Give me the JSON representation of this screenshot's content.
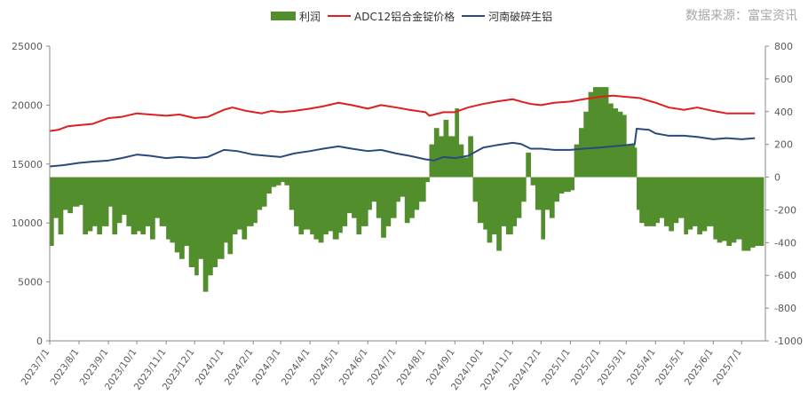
{
  "source_text": "数据来源：富宝资讯",
  "legend": [
    {
      "name": "利润",
      "kind": "area",
      "color": "#538e2d"
    },
    {
      "name": "ADC12铝合金锭价格",
      "kind": "line",
      "color": "#e01e1e"
    },
    {
      "name": "河南破碎生铝",
      "kind": "line",
      "color": "#2a4a7b"
    }
  ],
  "chart_data": {
    "type": "line",
    "x_tick_labels": [
      "2023/7/1",
      "2023/8/1",
      "2023/9/1",
      "2023/10/1",
      "2023/11/1",
      "2023/12/1",
      "2024/1/1",
      "2024/2/1",
      "2024/3/1",
      "2024/4/1",
      "2024/5/1",
      "2024/6/1",
      "2024/7/1",
      "2024/8/1",
      "2024/9/1",
      "2024/10/1",
      "2024/11/1",
      "2024/12/1",
      "2025/1/1",
      "2025/2/1",
      "2025/3/1",
      "2025/4/1",
      "2025/5/1",
      "2025/6/1",
      "2025/7/1"
    ],
    "y_left": {
      "min": 0,
      "max": 25000,
      "ticks": [
        0,
        5000,
        10000,
        15000,
        20000,
        25000
      ]
    },
    "y_right": {
      "min": -1000,
      "max": 800,
      "ticks": [
        -1000,
        -800,
        -600,
        -400,
        -200,
        0,
        200,
        400,
        600,
        800
      ]
    },
    "grid": false,
    "legend_position": "top",
    "x_start": "2023/7/1",
    "series": [
      {
        "name": "ADC12铝合金锭价格",
        "axis": "left",
        "color": "#e01e1e",
        "points": [
          [
            "2023/7/1",
            17800
          ],
          [
            "2023/7/10",
            17900
          ],
          [
            "2023/7/20",
            18200
          ],
          [
            "2023/8/1",
            18300
          ],
          [
            "2023/8/15",
            18400
          ],
          [
            "2023/9/1",
            18900
          ],
          [
            "2023/9/15",
            19000
          ],
          [
            "2023/10/1",
            19300
          ],
          [
            "2023/10/15",
            19200
          ],
          [
            "2023/11/1",
            19100
          ],
          [
            "2023/11/15",
            19200
          ],
          [
            "2023/12/1",
            18900
          ],
          [
            "2023/12/15",
            19000
          ],
          [
            "2024/1/1",
            19600
          ],
          [
            "2024/1/10",
            19800
          ],
          [
            "2024/1/25",
            19500
          ],
          [
            "2024/2/10",
            19300
          ],
          [
            "2024/2/20",
            19500
          ],
          [
            "2024/3/1",
            19400
          ],
          [
            "2024/3/15",
            19500
          ],
          [
            "2024/4/1",
            19700
          ],
          [
            "2024/4/15",
            19900
          ],
          [
            "2024/5/1",
            20200
          ],
          [
            "2024/5/15",
            20000
          ],
          [
            "2024/6/1",
            19700
          ],
          [
            "2024/6/15",
            20000
          ],
          [
            "2024/7/1",
            19800
          ],
          [
            "2024/7/15",
            19600
          ],
          [
            "2024/8/1",
            19400
          ],
          [
            "2024/8/5",
            19100
          ],
          [
            "2024/8/20",
            19400
          ],
          [
            "2024/9/1",
            19400
          ],
          [
            "2024/9/15",
            19800
          ],
          [
            "2024/10/1",
            20100
          ],
          [
            "2024/10/15",
            20300
          ],
          [
            "2024/11/1",
            20500
          ],
          [
            "2024/11/10",
            20300
          ],
          [
            "2024/11/20",
            20100
          ],
          [
            "2024/12/1",
            20000
          ],
          [
            "2024/12/15",
            20200
          ],
          [
            "2025/1/1",
            20300
          ],
          [
            "2025/1/15",
            20500
          ],
          [
            "2025/2/1",
            20700
          ],
          [
            "2025/2/15",
            20800
          ],
          [
            "2025/3/1",
            20700
          ],
          [
            "2025/3/15",
            20600
          ],
          [
            "2025/4/1",
            20200
          ],
          [
            "2025/4/15",
            19800
          ],
          [
            "2025/5/1",
            19600
          ],
          [
            "2025/5/15",
            19800
          ],
          [
            "2025/6/1",
            19500
          ],
          [
            "2025/6/15",
            19300
          ],
          [
            "2025/7/1",
            19300
          ],
          [
            "2025/7/15",
            19300
          ]
        ]
      },
      {
        "name": "河南破碎生铝",
        "axis": "left",
        "color": "#2a4a7b",
        "points": [
          [
            "2023/7/1",
            14800
          ],
          [
            "2023/7/15",
            14900
          ],
          [
            "2023/8/1",
            15100
          ],
          [
            "2023/8/15",
            15200
          ],
          [
            "2023/9/1",
            15300
          ],
          [
            "2023/9/15",
            15500
          ],
          [
            "2023/10/1",
            15800
          ],
          [
            "2023/10/15",
            15700
          ],
          [
            "2023/11/1",
            15500
          ],
          [
            "2023/11/15",
            15600
          ],
          [
            "2023/12/1",
            15500
          ],
          [
            "2023/12/15",
            15600
          ],
          [
            "2024/1/1",
            16200
          ],
          [
            "2024/1/15",
            16100
          ],
          [
            "2024/2/1",
            15800
          ],
          [
            "2024/2/15",
            15700
          ],
          [
            "2024/3/1",
            15600
          ],
          [
            "2024/3/15",
            15900
          ],
          [
            "2024/4/1",
            16100
          ],
          [
            "2024/4/15",
            16300
          ],
          [
            "2024/5/1",
            16500
          ],
          [
            "2024/5/15",
            16300
          ],
          [
            "2024/6/1",
            16100
          ],
          [
            "2024/6/15",
            16200
          ],
          [
            "2024/7/1",
            15900
          ],
          [
            "2024/7/15",
            15700
          ],
          [
            "2024/8/1",
            15400
          ],
          [
            "2024/8/10",
            15300
          ],
          [
            "2024/8/20",
            15600
          ],
          [
            "2024/9/1",
            15500
          ],
          [
            "2024/9/15",
            15700
          ],
          [
            "2024/10/1",
            16400
          ],
          [
            "2024/10/15",
            16600
          ],
          [
            "2024/11/1",
            16800
          ],
          [
            "2024/11/10",
            16700
          ],
          [
            "2024/11/20",
            16300
          ],
          [
            "2024/12/1",
            16300
          ],
          [
            "2024/12/15",
            16200
          ],
          [
            "2025/1/1",
            16200
          ],
          [
            "2025/1/15",
            16300
          ],
          [
            "2025/2/1",
            16400
          ],
          [
            "2025/2/15",
            16500
          ],
          [
            "2025/3/1",
            16600
          ],
          [
            "2025/3/10",
            16700
          ],
          [
            "2025/3/12",
            18000
          ],
          [
            "2025/3/25",
            17900
          ],
          [
            "2025/4/1",
            17600
          ],
          [
            "2025/4/15",
            17400
          ],
          [
            "2025/5/1",
            17400
          ],
          [
            "2025/5/15",
            17300
          ],
          [
            "2025/6/1",
            17100
          ],
          [
            "2025/6/15",
            17200
          ],
          [
            "2025/7/1",
            17100
          ],
          [
            "2025/7/15",
            17200
          ]
        ]
      },
      {
        "name": "利润",
        "axis": "right",
        "color": "#538e2d",
        "points": [
          [
            "2023/7/1",
            -420
          ],
          [
            "2023/7/5",
            -250
          ],
          [
            "2023/7/10",
            -350
          ],
          [
            "2023/7/15",
            -200
          ],
          [
            "2023/7/20",
            -220
          ],
          [
            "2023/7/25",
            -180
          ],
          [
            "2023/8/1",
            -170
          ],
          [
            "2023/8/5",
            -350
          ],
          [
            "2023/8/10",
            -330
          ],
          [
            "2023/8/15",
            -300
          ],
          [
            "2023/8/20",
            -350
          ],
          [
            "2023/8/25",
            -300
          ],
          [
            "2023/9/1",
            -180
          ],
          [
            "2023/9/5",
            -350
          ],
          [
            "2023/9/10",
            -280
          ],
          [
            "2023/9/15",
            -230
          ],
          [
            "2023/9/20",
            -300
          ],
          [
            "2023/9/25",
            -350
          ],
          [
            "2023/10/1",
            -330
          ],
          [
            "2023/10/5",
            -350
          ],
          [
            "2023/10/10",
            -300
          ],
          [
            "2023/10/15",
            -380
          ],
          [
            "2023/10/20",
            -250
          ],
          [
            "2023/10/25",
            -300
          ],
          [
            "2023/11/1",
            -380
          ],
          [
            "2023/11/5",
            -400
          ],
          [
            "2023/11/10",
            -460
          ],
          [
            "2023/11/15",
            -500
          ],
          [
            "2023/11/20",
            -420
          ],
          [
            "2023/11/25",
            -550
          ],
          [
            "2023/12/1",
            -600
          ],
          [
            "2023/12/5",
            -500
          ],
          [
            "2023/12/10",
            -700
          ],
          [
            "2023/12/15",
            -600
          ],
          [
            "2023/12/20",
            -550
          ],
          [
            "2023/12/25",
            -500
          ],
          [
            "2024/1/1",
            -400
          ],
          [
            "2024/1/5",
            -470
          ],
          [
            "2024/1/10",
            -350
          ],
          [
            "2024/1/15",
            -320
          ],
          [
            "2024/1/20",
            -380
          ],
          [
            "2024/1/25",
            -300
          ],
          [
            "2024/2/1",
            -280
          ],
          [
            "2024/2/5",
            -200
          ],
          [
            "2024/2/10",
            -180
          ],
          [
            "2024/2/15",
            -100
          ],
          [
            "2024/2/20",
            -60
          ],
          [
            "2024/2/25",
            -50
          ],
          [
            "2024/3/1",
            -30
          ],
          [
            "2024/3/5",
            -50
          ],
          [
            "2024/3/10",
            -200
          ],
          [
            "2024/3/15",
            -300
          ],
          [
            "2024/3/20",
            -350
          ],
          [
            "2024/3/25",
            -320
          ],
          [
            "2024/4/1",
            -350
          ],
          [
            "2024/4/5",
            -380
          ],
          [
            "2024/4/10",
            -400
          ],
          [
            "2024/4/15",
            -350
          ],
          [
            "2024/4/20",
            -330
          ],
          [
            "2024/4/25",
            -380
          ],
          [
            "2024/5/1",
            -340
          ],
          [
            "2024/5/5",
            -300
          ],
          [
            "2024/5/10",
            -220
          ],
          [
            "2024/5/15",
            -250
          ],
          [
            "2024/5/20",
            -350
          ],
          [
            "2024/5/25",
            -300
          ],
          [
            "2024/6/1",
            -200
          ],
          [
            "2024/6/5",
            -150
          ],
          [
            "2024/6/10",
            -250
          ],
          [
            "2024/6/15",
            -370
          ],
          [
            "2024/6/20",
            -300
          ],
          [
            "2024/6/25",
            -250
          ],
          [
            "2024/7/1",
            -150
          ],
          [
            "2024/7/5",
            -120
          ],
          [
            "2024/7/10",
            -280
          ],
          [
            "2024/7/15",
            -250
          ],
          [
            "2024/7/20",
            -200
          ],
          [
            "2024/7/25",
            -150
          ],
          [
            "2024/8/1",
            -30
          ],
          [
            "2024/8/5",
            200
          ],
          [
            "2024/8/10",
            300
          ],
          [
            "2024/8/15",
            250
          ],
          [
            "2024/8/20",
            350
          ],
          [
            "2024/8/25",
            250
          ],
          [
            "2024/9/1",
            420
          ],
          [
            "2024/9/5",
            200
          ],
          [
            "2024/9/10",
            120
          ],
          [
            "2024/9/15",
            250
          ],
          [
            "2024/9/20",
            -150
          ],
          [
            "2024/9/25",
            -280
          ],
          [
            "2024/10/1",
            -320
          ],
          [
            "2024/10/5",
            -400
          ],
          [
            "2024/10/10",
            -350
          ],
          [
            "2024/10/15",
            -450
          ],
          [
            "2024/10/20",
            -300
          ],
          [
            "2024/10/25",
            -350
          ],
          [
            "2024/11/1",
            -300
          ],
          [
            "2024/11/5",
            -250
          ],
          [
            "2024/11/10",
            -150
          ],
          [
            "2024/11/15",
            150
          ],
          [
            "2024/11/20",
            -50
          ],
          [
            "2024/11/25",
            -200
          ],
          [
            "2024/12/1",
            -380
          ],
          [
            "2024/12/5",
            -200
          ],
          [
            "2024/12/10",
            -250
          ],
          [
            "2024/12/15",
            -150
          ],
          [
            "2024/12/20",
            -100
          ],
          [
            "2024/12/25",
            -90
          ],
          [
            "2025/1/1",
            -80
          ],
          [
            "2025/1/5",
            200
          ],
          [
            "2025/1/10",
            300
          ],
          [
            "2025/1/15",
            400
          ],
          [
            "2025/1/20",
            520
          ],
          [
            "2025/1/25",
            550
          ],
          [
            "2025/2/1",
            550
          ],
          [
            "2025/2/5",
            550
          ],
          [
            "2025/2/10",
            450
          ],
          [
            "2025/2/15",
            420
          ],
          [
            "2025/2/20",
            400
          ],
          [
            "2025/2/25",
            380
          ],
          [
            "2025/3/1",
            200
          ],
          [
            "2025/3/5",
            200
          ],
          [
            "2025/3/10",
            180
          ],
          [
            "2025/3/12",
            -200
          ],
          [
            "2025/3/15",
            -280
          ],
          [
            "2025/3/20",
            -300
          ],
          [
            "2025/3/25",
            -300
          ],
          [
            "2025/4/1",
            -280
          ],
          [
            "2025/4/5",
            -250
          ],
          [
            "2025/4/10",
            -300
          ],
          [
            "2025/4/15",
            -330
          ],
          [
            "2025/4/20",
            -280
          ],
          [
            "2025/4/25",
            -250
          ],
          [
            "2025/5/1",
            -350
          ],
          [
            "2025/5/5",
            -320
          ],
          [
            "2025/5/10",
            -300
          ],
          [
            "2025/5/15",
            -350
          ],
          [
            "2025/5/20",
            -330
          ],
          [
            "2025/5/25",
            -300
          ],
          [
            "2025/6/1",
            -380
          ],
          [
            "2025/6/5",
            -400
          ],
          [
            "2025/6/10",
            -390
          ],
          [
            "2025/6/15",
            -420
          ],
          [
            "2025/6/20",
            -400
          ],
          [
            "2025/6/25",
            -380
          ],
          [
            "2025/7/1",
            -450
          ],
          [
            "2025/7/5",
            -450
          ],
          [
            "2025/7/10",
            -430
          ],
          [
            "2025/7/15",
            -420
          ]
        ]
      }
    ]
  }
}
